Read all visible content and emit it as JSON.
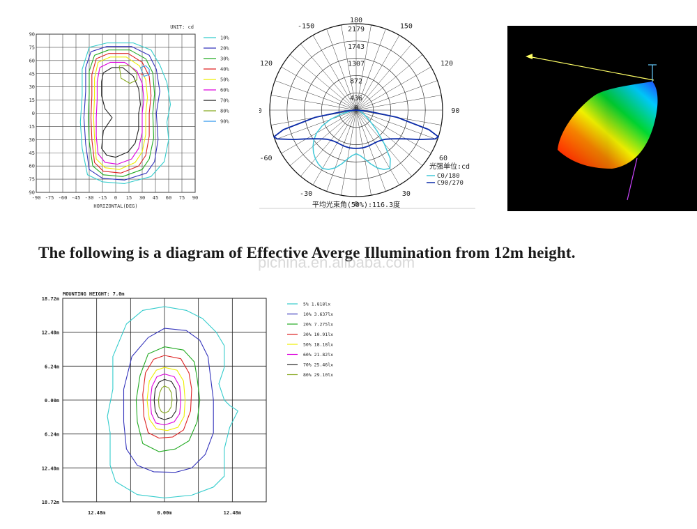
{
  "headline": "The following is a diagram of Effective Averge Illumination from 12m height.",
  "watermark": "pichina.en.alibaba.com",
  "chart_data": [
    {
      "type": "line",
      "unit_label": "UNIT: cd",
      "xlabel": "HORIZONTAL(DEG)",
      "ylabel": "VERTICAL(DEG)",
      "x_ticks": [
        "-90",
        "-75",
        "-60",
        "-45",
        "-30",
        "-15",
        "0",
        "15",
        "30",
        "45",
        "60",
        "75",
        "90"
      ],
      "y_ticks": [
        "90",
        "75",
        "60",
        "45",
        "30",
        "15",
        "0",
        "-15",
        "-30",
        "-45",
        "-60",
        "-75",
        "-90"
      ],
      "xlim": [
        -90,
        90
      ],
      "ylim": [
        -90,
        90
      ],
      "grid": true,
      "legend_position": "right",
      "series": [
        {
          "name": "10%",
          "color": "#33cccc",
          "x": [
            -30,
            -10,
            20,
            40,
            50,
            58,
            62,
            58,
            60,
            55,
            40,
            10,
            -15,
            -32,
            -38,
            -40,
            -38,
            -38,
            -30
          ],
          "y": [
            75,
            80,
            80,
            72,
            55,
            35,
            10,
            -10,
            -30,
            -55,
            -72,
            -80,
            -78,
            -70,
            -40,
            -10,
            20,
            50,
            75
          ]
        },
        {
          "name": "20%",
          "color": "#3333bb",
          "x": [
            -28,
            -10,
            18,
            38,
            46,
            50,
            46,
            48,
            44,
            35,
            10,
            -15,
            -30,
            -34,
            -36,
            -34,
            -34,
            -28
          ],
          "y": [
            70,
            76,
            76,
            66,
            50,
            25,
            0,
            -30,
            -55,
            -68,
            -76,
            -74,
            -64,
            -35,
            -5,
            25,
            52,
            70
          ]
        },
        {
          "name": "30%",
          "color": "#22aa22",
          "x": [
            -24,
            -8,
            16,
            34,
            42,
            44,
            42,
            43,
            38,
            30,
            8,
            -14,
            -26,
            -30,
            -31,
            -30,
            -30,
            -24
          ],
          "y": [
            66,
            72,
            72,
            62,
            46,
            22,
            0,
            -28,
            -52,
            -64,
            -72,
            -70,
            -60,
            -32,
            -5,
            22,
            48,
            66
          ]
        },
        {
          "name": "40%",
          "color": "#dd2222",
          "x": [
            -22,
            -8,
            14,
            30,
            38,
            40,
            38,
            38,
            34,
            26,
            6,
            -14,
            -24,
            -27,
            -28,
            -27,
            -27,
            -22
          ],
          "y": [
            62,
            68,
            68,
            58,
            42,
            20,
            0,
            -26,
            -48,
            -60,
            -68,
            -66,
            -56,
            -30,
            -5,
            20,
            44,
            62
          ]
        },
        {
          "name": "50%",
          "color": "#eeee00",
          "x": [
            -20,
            -6,
            12,
            27,
            34,
            36,
            34,
            34,
            30,
            22,
            4,
            -12,
            -22,
            -24,
            -25,
            -24,
            -24,
            -20
          ],
          "y": [
            58,
            64,
            64,
            54,
            38,
            18,
            0,
            -24,
            -44,
            -56,
            -64,
            -62,
            -52,
            -28,
            -5,
            18,
            40,
            58
          ]
        },
        {
          "name": "60%",
          "color": "#dd00dd",
          "x": [
            -18,
            -6,
            10,
            24,
            30,
            32,
            30,
            30,
            26,
            18,
            2,
            -12,
            -20,
            -22,
            -22,
            -21,
            -21,
            -18
          ],
          "y": [
            52,
            58,
            58,
            48,
            34,
            16,
            0,
            -22,
            -40,
            -52,
            -58,
            -56,
            -46,
            -26,
            -5,
            16,
            36,
            52
          ]
        },
        {
          "name": "70%",
          "color": "#222222",
          "x": [
            -14,
            -4,
            8,
            20,
            26,
            28,
            26,
            26,
            22,
            14,
            0,
            -10,
            -16,
            -14,
            -4,
            -12,
            -16,
            -16,
            -14
          ],
          "y": [
            46,
            52,
            52,
            42,
            28,
            10,
            0,
            -18,
            -34,
            -44,
            -50,
            -48,
            -40,
            -20,
            -5,
            5,
            20,
            36,
            46
          ]
        },
        {
          "name": "80%",
          "color": "#88aa22",
          "x": [
            4,
            16,
            24,
            24,
            16,
            6,
            4
          ],
          "y": [
            54,
            54,
            46,
            38,
            34,
            40,
            54
          ]
        },
        {
          "name": "90%",
          "color": "#3399ee",
          "x": [
            28,
            34,
            38,
            38,
            32,
            28
          ],
          "y": [
            52,
            54,
            50,
            44,
            42,
            52
          ]
        }
      ]
    },
    {
      "type": "line",
      "subtype": "polar",
      "radial_ticks": [
        "0",
        "436",
        "872",
        "1307",
        "1743",
        "2179"
      ],
      "rmax": 2179,
      "angle_ticks": [
        "180",
        "-150",
        "150",
        "-120",
        "120",
        "-90",
        "90",
        "-60",
        "60",
        "-30",
        "30",
        "0"
      ],
      "unit_label": "光强单位:cd",
      "caption": "平均光束角(50%):116.3度",
      "legend_position": "bottom-right",
      "series": [
        {
          "name": "C0/180",
          "color": "#40c8d8",
          "theta": [
            -90,
            -85,
            -80,
            -75,
            -70,
            -65,
            -60,
            -55,
            -50,
            -45,
            -40,
            -35,
            -30,
            -25,
            -20,
            -15,
            -10,
            -5,
            0,
            5,
            10,
            15,
            20,
            25,
            30,
            35,
            40,
            45,
            50,
            55,
            60,
            65,
            70,
            75,
            80,
            85,
            90
          ],
          "r": [
            0,
            0,
            150,
            400,
            700,
            950,
            1150,
            1300,
            1420,
            1520,
            1600,
            1660,
            1700,
            1650,
            1550,
            1400,
            1250,
            1150,
            1100,
            1150,
            1250,
            1400,
            1550,
            1650,
            1700,
            1500,
            1100,
            750,
            500,
            350,
            250,
            180,
            130,
            100,
            60,
            20,
            0
          ]
        },
        {
          "name": "C90/270",
          "color": "#0a2aa8",
          "theta": [
            -90,
            -85,
            -80,
            -75,
            -72,
            -70,
            -65,
            -60,
            -55,
            -50,
            -45,
            -40,
            -35,
            -30,
            -25,
            -20,
            -15,
            -10,
            -5,
            0,
            5,
            10,
            15,
            20,
            25,
            30,
            35,
            40,
            45,
            50,
            55,
            60,
            65,
            70,
            72,
            75,
            80,
            85,
            90
          ],
          "r": [
            0,
            300,
            1050,
            1900,
            2180,
            2120,
            1750,
            1450,
            1260,
            1130,
            1040,
            990,
            960,
            950,
            950,
            955,
            960,
            965,
            965,
            965,
            965,
            965,
            960,
            955,
            950,
            950,
            960,
            990,
            1040,
            1130,
            1260,
            1450,
            1750,
            2120,
            2180,
            1900,
            1050,
            300,
            0
          ]
        }
      ]
    },
    {
      "type": "line",
      "title": "MOUNTING HEIGHT: 7.0m",
      "x_ticks": [
        "12.48m",
        "0.00m",
        "12.48m"
      ],
      "y_ticks": [
        "18.72m",
        "12.48m",
        "6.24m",
        "0.00m",
        "6.24m",
        "12.48m",
        "18.72m"
      ],
      "xlim": [
        -18.72,
        18.72
      ],
      "ylim": [
        -18.72,
        18.72
      ],
      "grid": true,
      "legend_position": "right",
      "series": [
        {
          "name": "5% 1.818lx",
          "color": "#33cccc",
          "x": [
            0,
            4,
            7,
            9.5,
            11,
            11,
            10,
            11,
            12,
            13.5,
            12,
            11,
            11,
            11,
            9,
            5,
            0,
            -5,
            -9,
            -10,
            -10,
            -10.5,
            -9.5,
            -9.5,
            -7,
            -4,
            0
          ],
          "y": [
            17.2,
            16.5,
            15,
            12.5,
            10,
            6,
            3,
            0,
            -1,
            -2,
            -5,
            -9,
            -12.5,
            -14,
            -16,
            -17.5,
            -18,
            -17.4,
            -15,
            -12,
            -6,
            -3,
            2,
            8,
            14,
            16.5,
            17.2
          ]
        },
        {
          "name": "10% 3.637lx",
          "color": "#3333bb",
          "x": [
            0,
            4,
            6.5,
            8,
            8.5,
            9,
            9,
            7.5,
            5,
            2,
            -2,
            -5,
            -7,
            -7.5,
            -7.5,
            -6,
            -3,
            0
          ],
          "y": [
            13.2,
            12.8,
            11,
            8,
            4,
            0,
            -6,
            -10,
            -12.5,
            -13.3,
            -13.2,
            -12,
            -9,
            -4,
            2,
            8,
            11.5,
            13.2
          ]
        },
        {
          "name": "20% 7.275lx",
          "color": "#22aa22",
          "x": [
            0,
            3.5,
            5.5,
            6,
            6.5,
            6,
            4.5,
            2,
            -1,
            -4,
            -5,
            -5.2,
            -4.5,
            -3,
            0
          ],
          "y": [
            9.8,
            9.2,
            7,
            4,
            0,
            -4,
            -7.5,
            -9,
            -9.5,
            -8,
            -4,
            0,
            4.5,
            8.5,
            9.8
          ]
        },
        {
          "name": "30% 10.91lx",
          "color": "#dd2222",
          "x": [
            0,
            3,
            4.5,
            5,
            4.8,
            3.5,
            1.5,
            -1,
            -3,
            -3.8,
            -4,
            -3.5,
            -2,
            0
          ],
          "y": [
            8.2,
            7.6,
            5,
            2,
            -2,
            -5.5,
            -6.8,
            -7,
            -6,
            -3,
            1,
            5,
            7.5,
            8.2
          ]
        },
        {
          "name": "50% 18.18lx",
          "color": "#eeee00",
          "x": [
            0,
            2.3,
            3.5,
            3.8,
            3.6,
            2.5,
            0.5,
            -1.5,
            -2.8,
            -3.2,
            -2.8,
            -1.5,
            0
          ],
          "y": [
            6,
            5.5,
            3.5,
            0,
            -3,
            -5,
            -5.6,
            -5.3,
            -3.5,
            0,
            3.5,
            5.5,
            6
          ]
        },
        {
          "name": "60% 21.82lx",
          "color": "#dd00dd",
          "x": [
            0,
            1.8,
            2.8,
            3,
            2.8,
            1.8,
            0,
            -1.6,
            -2.4,
            -2.6,
            -2.3,
            -1.4,
            0
          ],
          "y": [
            4.8,
            4.3,
            2.5,
            0,
            -2.5,
            -4,
            -4.6,
            -4.2,
            -2.5,
            0,
            2.5,
            4.3,
            4.8
          ]
        },
        {
          "name": "70% 25.46lx",
          "color": "#222222",
          "x": [
            0,
            1.3,
            2.1,
            2.3,
            2.1,
            1.3,
            0,
            -1.1,
            -1.7,
            -1.9,
            -1.7,
            -1,
            0
          ],
          "y": [
            3.8,
            3.4,
            2,
            0,
            -2,
            -3.2,
            -3.6,
            -3.2,
            -2,
            0,
            2,
            3.3,
            3.8
          ]
        },
        {
          "name": "80% 29.10lx",
          "color": "#88aa22",
          "x": [
            0,
            0.8,
            1.3,
            1.4,
            1.2,
            0.7,
            0,
            -0.6,
            -1,
            -1.1,
            -0.9,
            -0.5,
            0
          ],
          "y": [
            2.6,
            2.2,
            1.3,
            0,
            -1.3,
            -2.1,
            -2.4,
            -2.1,
            -1.3,
            0,
            1.3,
            2.2,
            2.6
          ]
        }
      ]
    }
  ]
}
